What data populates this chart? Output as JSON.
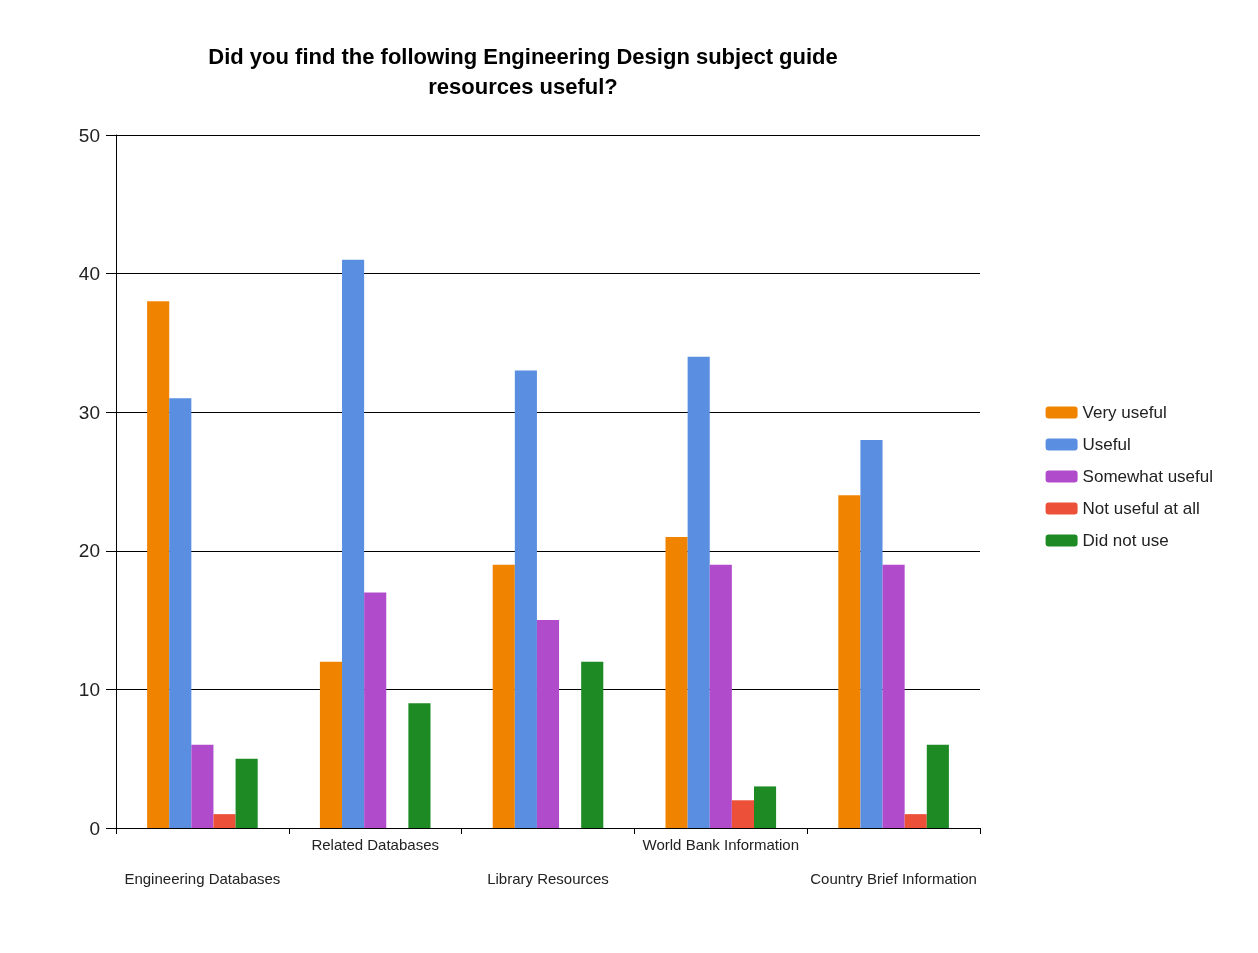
{
  "chart_data": {
    "type": "bar",
    "title": "Did you find the following Engineering Design subject guide\nresources useful?",
    "categories": [
      "Engineering Databases",
      "Related Databases",
      "Library Resources",
      "World Bank Information",
      "Country Brief Information"
    ],
    "series": [
      {
        "name": "Very useful",
        "color": "#f08400",
        "values": [
          38,
          12,
          19,
          21,
          24
        ]
      },
      {
        "name": "Useful",
        "color": "#5a8ee0",
        "values": [
          31,
          41,
          33,
          34,
          28
        ]
      },
      {
        "name": "Somewhat useful",
        "color": "#b04ccc",
        "values": [
          6,
          17,
          15,
          19,
          19
        ]
      },
      {
        "name": "Not useful at all",
        "color": "#ec5038",
        "values": [
          1,
          0,
          0,
          2,
          1
        ]
      },
      {
        "name": "Did not use",
        "color": "#1e8a24",
        "values": [
          5,
          9,
          12,
          3,
          6
        ]
      }
    ],
    "ylim": [
      0,
      50
    ],
    "yticks": [
      0,
      10,
      20,
      30,
      40,
      50
    ],
    "grid": "y",
    "legend": "right"
  }
}
